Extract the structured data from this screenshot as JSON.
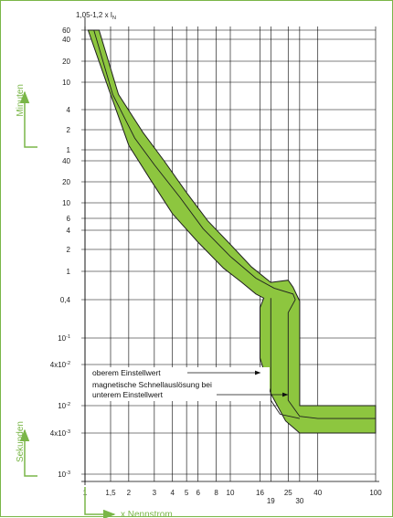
{
  "chart_data": {
    "type": "area",
    "title": "",
    "top_label": "1,05-1,2 x I",
    "top_label_sub": "N",
    "xlabel": "x Nennstrom",
    "ylabel_top": "Minuten",
    "ylabel_bottom": "Sekunden",
    "x_scale": "log",
    "y_scale": "log",
    "xlim": [
      1,
      100
    ],
    "grid": true,
    "x_ticks": [
      {
        "v": 1,
        "label": "1"
      },
      {
        "v": 1.5,
        "label": "1,5"
      },
      {
        "v": 2,
        "label": "2"
      },
      {
        "v": 3,
        "label": "3"
      },
      {
        "v": 4,
        "label": "4"
      },
      {
        "v": 5,
        "label": "5"
      },
      {
        "v": 6,
        "label": "6"
      },
      {
        "v": 8,
        "label": "8"
      },
      {
        "v": 10,
        "label": "10"
      },
      {
        "v": 16,
        "label": "16"
      },
      {
        "v": 19,
        "label": "19"
      },
      {
        "v": 25,
        "label": "25"
      },
      {
        "v": 30,
        "label": "30"
      },
      {
        "v": 40,
        "label": "40"
      },
      {
        "v": 100,
        "label": "100"
      }
    ],
    "y_ticks": [
      {
        "s": 3600,
        "label": "60"
      },
      {
        "s": 2400,
        "label": "40"
      },
      {
        "s": 1200,
        "label": "20"
      },
      {
        "s": 600,
        "label": "10"
      },
      {
        "s": 240,
        "label": "4"
      },
      {
        "s": 120,
        "label": "2"
      },
      {
        "s": 60,
        "label": "1"
      },
      {
        "s": 40,
        "label": "40"
      },
      {
        "s": 20,
        "label": "20"
      },
      {
        "s": 10,
        "label": "10"
      },
      {
        "s": 6,
        "label": "6"
      },
      {
        "s": 4,
        "label": "4"
      },
      {
        "s": 2,
        "label": "2"
      },
      {
        "s": 1,
        "label": "1"
      },
      {
        "s": 0.4,
        "label": "0,4"
      },
      {
        "s": 0.1,
        "label": "10"
      },
      {
        "s": 0.04,
        "label": "4x10"
      },
      {
        "s": 0.01,
        "label": "10"
      },
      {
        "s": 0.004,
        "label": "4x10"
      },
      {
        "s": 0.001,
        "label": "10"
      }
    ],
    "y_tick_sup": {
      "0.1": "-1",
      "0.04": "-2",
      "0.01": "-2",
      "0.004": "-3",
      "0.001": "-3"
    },
    "band": {
      "name": "",
      "upper": [
        [
          1.25,
          3600
        ],
        [
          1.7,
          400
        ],
        [
          2.5,
          110
        ],
        [
          3.5,
          40
        ],
        [
          5,
          14
        ],
        [
          7,
          5.5
        ],
        [
          10,
          2.4
        ],
        [
          14,
          1.15
        ],
        [
          19,
          0.7
        ],
        [
          25,
          0.75
        ],
        [
          27,
          0.6
        ],
        [
          30,
          0.38
        ],
        [
          30,
          0.01
        ],
        [
          100,
          0.01
        ]
      ],
      "lower": [
        [
          100,
          0.004
        ],
        [
          30,
          0.004
        ],
        [
          24,
          0.006
        ],
        [
          19,
          0.015
        ],
        [
          16,
          0.05
        ],
        [
          16,
          0.3
        ],
        [
          17,
          0.42
        ],
        [
          15,
          0.48
        ],
        [
          12,
          0.7
        ],
        [
          9,
          1.1
        ],
        [
          6,
          2.6
        ],
        [
          4,
          7
        ],
        [
          2.8,
          22
        ],
        [
          2,
          70
        ],
        [
          1.5,
          400
        ],
        [
          1.05,
          3600
        ]
      ],
      "mid_curve": [
        [
          1.15,
          3600
        ],
        [
          1.55,
          400
        ],
        [
          2.2,
          90
        ],
        [
          3,
          35
        ],
        [
          4.5,
          12
        ],
        [
          6.5,
          4.2
        ],
        [
          10,
          1.6
        ],
        [
          15,
          0.8
        ],
        [
          20,
          0.58
        ],
        [
          27,
          0.48
        ],
        [
          28,
          0.4
        ],
        [
          25,
          0.25
        ],
        [
          25,
          0.012
        ],
        [
          30,
          0.007
        ],
        [
          40,
          0.0065
        ],
        [
          100,
          0.0065
        ]
      ],
      "mid_curve_low_branch": [
        [
          19,
          0.42
        ],
        [
          19,
          0.012
        ],
        [
          22,
          0.0075
        ],
        [
          30,
          0.0065
        ]
      ]
    },
    "annotations": [
      {
        "text": "oberem Einstellwert",
        "arrow_to": [
          16.5,
          0.03
        ]
      },
      {
        "text": "magnetische Schnellauslösung bei",
        "arrow_to": null
      },
      {
        "text": "unterem Einstellwert",
        "arrow_to": [
          25.5,
          0.015
        ]
      }
    ],
    "colors": {
      "band_fill": "#8dc63f",
      "band_stroke": "#1f1f1f",
      "accent": "#7ab648",
      "grid": "#000000"
    }
  }
}
